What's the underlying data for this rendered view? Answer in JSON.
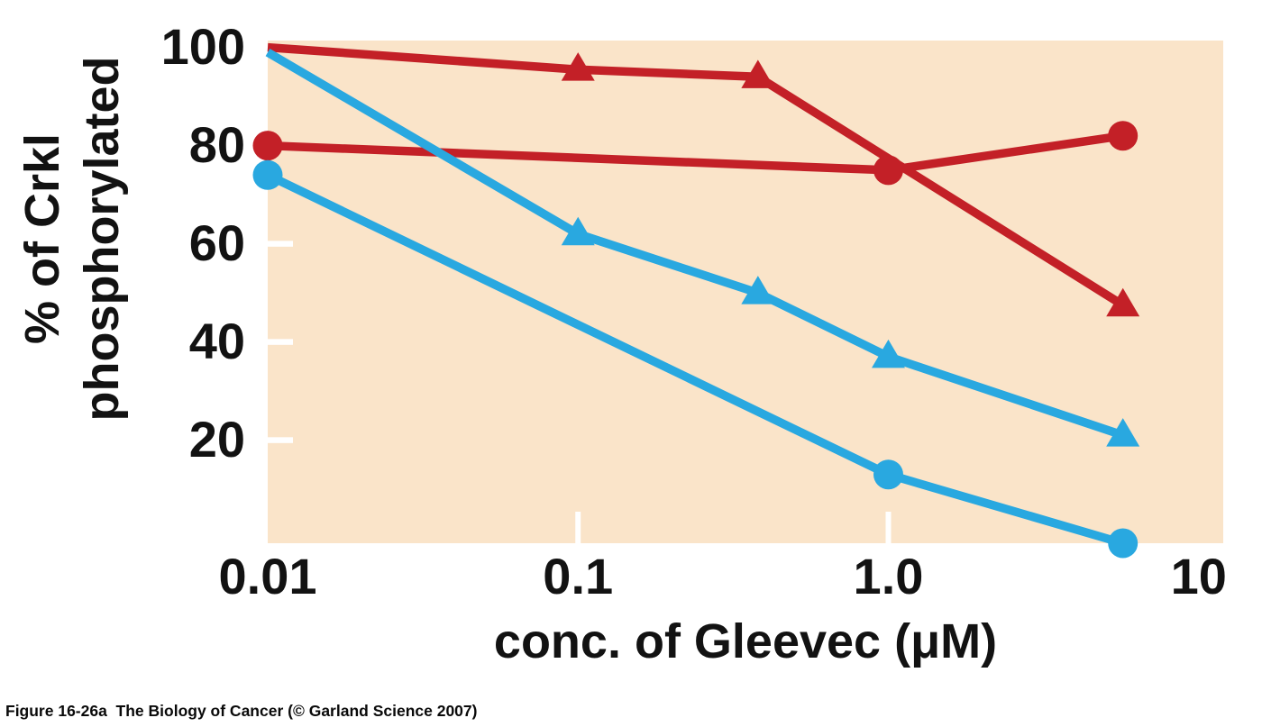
{
  "figure": {
    "caption": "Figure 16-26a  The Biology of Cancer (© Garland Science 2007)"
  },
  "chart_data": {
    "type": "line",
    "title": "",
    "legend": "none",
    "grid": false,
    "plot_bg": "#fae4c9",
    "tick_mark_color": "#ffffff",
    "x_axis": {
      "label": "conc. of Gleevec (μM)",
      "scale": "log",
      "range": [
        0.01,
        12
      ],
      "ticks": [
        {
          "value": 0.01,
          "label": "0.01",
          "tick_mark": false
        },
        {
          "value": 0.1,
          "label": "0.1",
          "tick_mark": true
        },
        {
          "value": 1.0,
          "label": "1.0",
          "tick_mark": true
        },
        {
          "value": 10,
          "label": "10",
          "tick_mark": false
        }
      ]
    },
    "y_axis": {
      "label_lines": [
        "% of Crkl",
        "phosphorylated"
      ],
      "scale": "linear",
      "range": [
        -1,
        101.4
      ],
      "ticks": [
        {
          "value": 100,
          "label": "100",
          "tick_mark": false
        },
        {
          "value": 80,
          "label": "80",
          "tick_mark": false
        },
        {
          "value": 60,
          "label": "60",
          "tick_mark": true
        },
        {
          "value": 40,
          "label": "40",
          "tick_mark": true
        },
        {
          "value": 20,
          "label": "20",
          "tick_mark": true
        }
      ]
    },
    "series": [
      {
        "name": "red-triangles",
        "color": "#c32027",
        "marker": "triangle",
        "points": [
          {
            "x": 0.01,
            "y": 100,
            "marker": false
          },
          {
            "x": 0.1,
            "y": 95.5
          },
          {
            "x": 0.38,
            "y": 94
          },
          {
            "x": 5.7,
            "y": 47.5
          }
        ]
      },
      {
        "name": "red-circles",
        "color": "#c32027",
        "marker": "circle",
        "points": [
          {
            "x": 0.01,
            "y": 80
          },
          {
            "x": 1.0,
            "y": 75
          },
          {
            "x": 5.7,
            "y": 82
          }
        ]
      },
      {
        "name": "blue-triangles",
        "color": "#29a8e0",
        "marker": "triangle",
        "points": [
          {
            "x": 0.01,
            "y": 99,
            "marker": false
          },
          {
            "x": 0.1,
            "y": 62
          },
          {
            "x": 0.38,
            "y": 50
          },
          {
            "x": 1.0,
            "y": 37
          },
          {
            "x": 5.7,
            "y": 21
          }
        ]
      },
      {
        "name": "blue-circles",
        "color": "#29a8e0",
        "marker": "circle",
        "points": [
          {
            "x": 0.01,
            "y": 74
          },
          {
            "x": 1.0,
            "y": 13
          },
          {
            "x": 5.7,
            "y": -1
          }
        ]
      }
    ]
  }
}
